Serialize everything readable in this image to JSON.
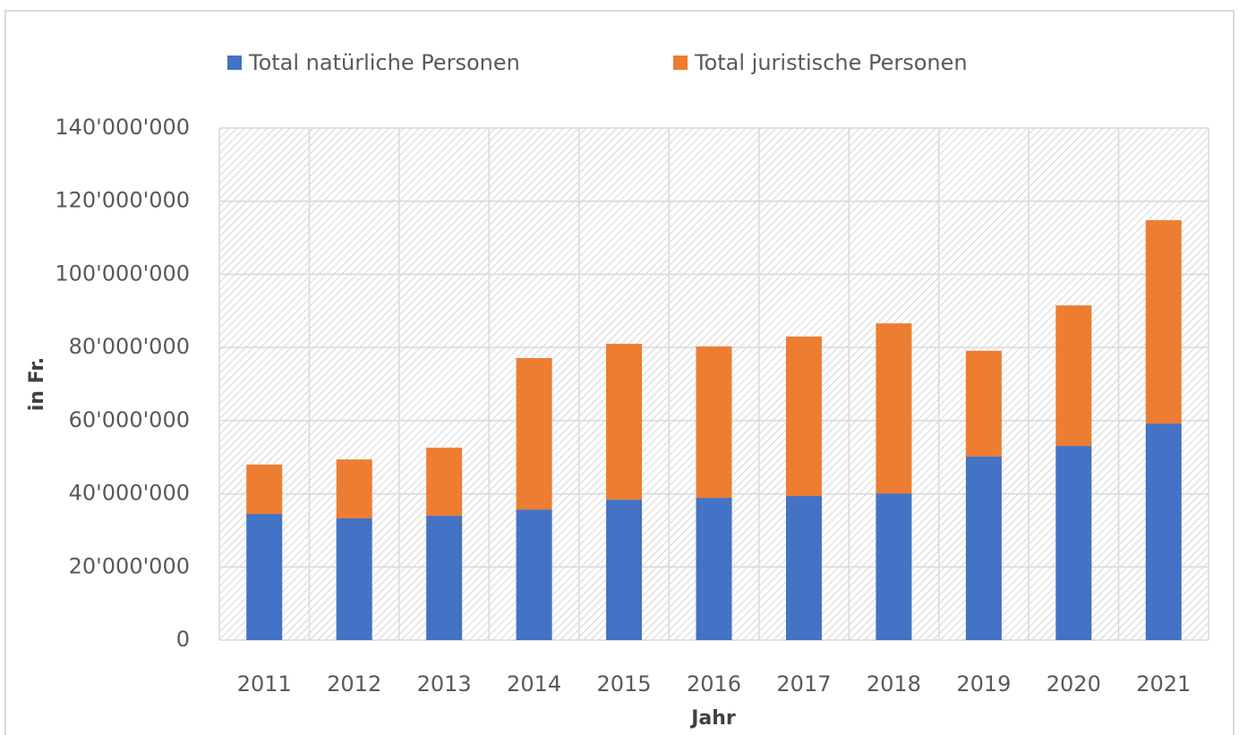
{
  "chart_data": {
    "type": "stacked-bar",
    "x_label": "Jahr",
    "y_label": "in Fr.",
    "categories": [
      "2011",
      "2012",
      "2013",
      "2014",
      "2015",
      "2016",
      "2017",
      "2018",
      "2019",
      "2020",
      "2021"
    ],
    "series": [
      {
        "name": "Total natürliche Personen",
        "color": "#4472c4",
        "values": [
          34500000,
          33300000,
          34000000,
          35700000,
          38400000,
          38900000,
          39400000,
          40100000,
          50200000,
          53100000,
          59200000
        ]
      },
      {
        "name": "Total juristische Personen",
        "color": "#ed7d31",
        "values": [
          13500000,
          16100000,
          18600000,
          41400000,
          42600000,
          41400000,
          43600000,
          46500000,
          28900000,
          38400000,
          55600000
        ]
      }
    ],
    "ylim": [
      0,
      140000000
    ],
    "yticks": [
      0,
      {
        "value": 20000000,
        "label": "20'000'000"
      },
      {
        "value": 40000000,
        "label": "40'000'000"
      },
      {
        "value": 60000000,
        "label": "60'000'000"
      },
      {
        "value": 80000000,
        "label": "80'000'000"
      },
      {
        "value": 100000000,
        "label": "100'000'000"
      },
      {
        "value": 120000000,
        "label": "120'000'000"
      },
      {
        "value": 140000000,
        "label": "140'000'000"
      }
    ],
    "grid": true,
    "legend": "top"
  }
}
